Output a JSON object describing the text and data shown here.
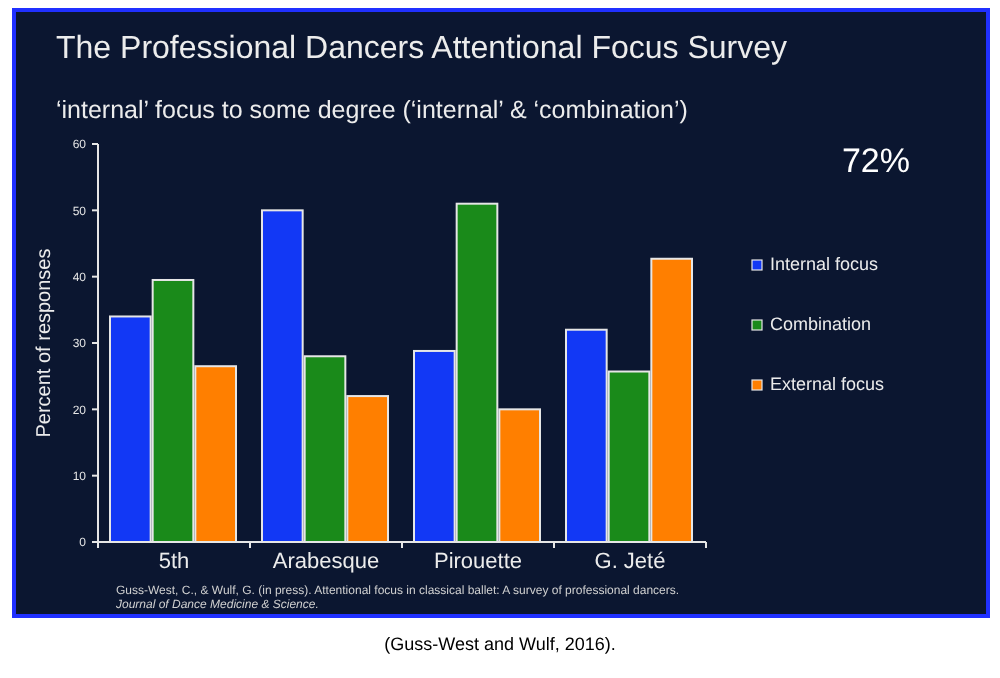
{
  "chart_data": {
    "type": "bar",
    "title": "The Professional Dancers Attentional Focus Survey",
    "subtitle": "‘internal’ focus to some degree (‘internal’ & ‘combination’)",
    "ylabel": "Percent of responses",
    "categories": [
      "5th",
      "Arabesque",
      "Pirouette",
      "G. Jeté"
    ],
    "series": [
      {
        "name": "Internal focus",
        "color": "#1238f5",
        "values": [
          34,
          50,
          28.8,
          32
        ]
      },
      {
        "name": "Combination",
        "color": "#1a8a1a",
        "values": [
          39.5,
          28,
          51,
          25.7
        ]
      },
      {
        "name": "External focus",
        "color": "#ff7f00",
        "values": [
          26.5,
          22,
          20,
          42.7
        ]
      }
    ],
    "ylim": [
      0,
      60
    ],
    "yticks": [
      0,
      10,
      20,
      30,
      40,
      50,
      60
    ],
    "grid": false,
    "legend": "right",
    "annotations": [
      "72%",
      "Guss-West, C., & Wulf, G. (in press). Attentional focus in classical ballet: A survey of professional dancers.",
      "Journal of Dance Medicine & Science.",
      "(Guss-West and Wulf, 2016)."
    ]
  }
}
